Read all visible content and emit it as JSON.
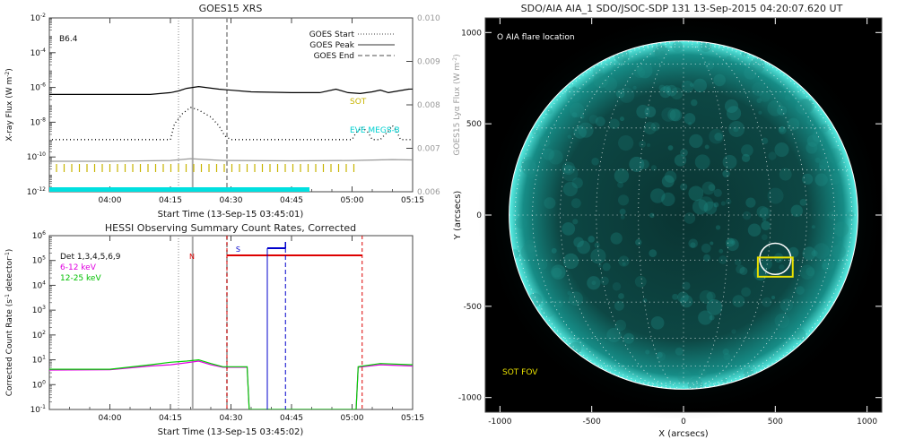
{
  "chart_data": [
    {
      "type": "line",
      "title": "GOES15 XRS",
      "xlabel": "Start Time (13-Sep-15 03:45:01)",
      "ylabel": "X-ray Flux (W m",
      "ylabel_sup": "-2",
      "ylabel_tail": ")",
      "y2label": "GOES15 Lyα Flux (W m",
      "y2label_sup": "-2",
      "y2label_tail": ")",
      "xlim": [
        -15,
        75
      ],
      "x_ticks": [
        {
          "v": 0,
          "label": "04:00"
        },
        {
          "v": 15,
          "label": "04:15"
        },
        {
          "v": 30,
          "label": "04:30"
        },
        {
          "v": 45,
          "label": "04:45"
        },
        {
          "v": 60,
          "label": "05:00"
        },
        {
          "v": 75,
          "label": "05:15"
        }
      ],
      "y_scale": "log",
      "ylim_exp": [
        -12,
        -2
      ],
      "y_ticks": [
        {
          "e": -2,
          "label": "10",
          "sup": "-2"
        },
        {
          "e": -4,
          "label": "10",
          "sup": "-4"
        },
        {
          "e": -6,
          "label": "10",
          "sup": "-6"
        },
        {
          "e": -8,
          "label": "10",
          "sup": "-8"
        },
        {
          "e": -10,
          "label": "10",
          "sup": "-10"
        },
        {
          "e": -12,
          "label": "10",
          "sup": "-12"
        }
      ],
      "y2lim": [
        0.006,
        0.01
      ],
      "y2_ticks": [
        "0.010",
        "0.009",
        "0.008",
        "0.007",
        "0.006"
      ],
      "class_label": "B6.4",
      "legend": [
        {
          "label": "GOES Start",
          "style": "dotted"
        },
        {
          "label": "GOES Peak",
          "style": "solid"
        },
        {
          "label": "GOES End",
          "style": "dashed"
        }
      ],
      "markers": {
        "start": 17,
        "peak": 20.5,
        "end": 29
      },
      "annotations": [
        {
          "text": "SOT",
          "color": "#c8b400"
        },
        {
          "text": "EVE MEGS-B",
          "color": "#00e0e0"
        }
      ],
      "series": [
        {
          "color": "#000000",
          "points": [
            [
              -25,
              -6.4
            ],
            [
              -5,
              -6.4
            ],
            [
              10,
              -6.4
            ],
            [
              15,
              -6.3
            ],
            [
              17,
              -6.2
            ],
            [
              19,
              -6.05
            ],
            [
              22,
              -5.95
            ],
            [
              27,
              -6.1
            ],
            [
              35,
              -6.25
            ],
            [
              45,
              -6.3
            ],
            [
              52,
              -6.3
            ],
            [
              56,
              -6.1
            ],
            [
              59,
              -6.3
            ],
            [
              62,
              -6.35
            ],
            [
              65,
              -6.25
            ],
            [
              67,
              -6.15
            ],
            [
              69,
              -6.3
            ],
            [
              74,
              -6.1
            ],
            [
              83,
              -6.0
            ]
          ]
        },
        {
          "color": "#000000",
          "style": "dotted",
          "points": [
            [
              -25,
              -9.0
            ],
            [
              15,
              -9.0
            ],
            [
              16,
              -8.1
            ],
            [
              18,
              -7.5
            ],
            [
              20,
              -7.15
            ],
            [
              22,
              -7.3
            ],
            [
              25,
              -7.7
            ],
            [
              27,
              -8.2
            ],
            [
              28.5,
              -8.8
            ],
            [
              30,
              -9.0
            ],
            [
              60,
              -9.0
            ],
            [
              61,
              -8.6
            ],
            [
              62.5,
              -8.3
            ],
            [
              64,
              -8.6
            ],
            [
              65,
              -9.0
            ],
            [
              67,
              -9.0
            ],
            [
              69,
              -8.5
            ],
            [
              70,
              -8.2
            ],
            [
              71,
              -8.5
            ],
            [
              72,
              -9.0
            ],
            [
              83,
              -9.0
            ]
          ]
        },
        {
          "color": "#999999",
          "points": [
            [
              -25,
              -10.25
            ],
            [
              0,
              -10.25
            ],
            [
              15,
              -10.2
            ],
            [
              20,
              -10.1
            ],
            [
              28,
              -10.2
            ],
            [
              45,
              -10.22
            ],
            [
              60,
              -10.2
            ],
            [
              70,
              -10.15
            ],
            [
              83,
              -10.2
            ]
          ]
        }
      ]
    },
    {
      "type": "line",
      "title": "HESSI Observing Summary Count Rates, Corrected",
      "xlabel": "Start Time (13-Sep-15 03:45:02)",
      "ylabel": "Corrected Count Rate (s",
      "ylabel_sup": "-1",
      "ylabel_tail": " detector",
      "ylabel_sup2": "-1",
      "ylabel_end": ")",
      "xlim": [
        -15,
        75
      ],
      "x_ticks": [
        {
          "v": 0,
          "label": "04:00"
        },
        {
          "v": 15,
          "label": "04:15"
        },
        {
          "v": 30,
          "label": "04:30"
        },
        {
          "v": 45,
          "label": "04:45"
        },
        {
          "v": 60,
          "label": "05:00"
        },
        {
          "v": 75,
          "label": "05:15"
        }
      ],
      "y_scale": "log",
      "ylim_exp": [
        -1,
        6
      ],
      "y_ticks": [
        {
          "e": 6,
          "label": "10",
          "sup": "6"
        },
        {
          "e": 5,
          "label": "10",
          "sup": "5"
        },
        {
          "e": 4,
          "label": "10",
          "sup": "4"
        },
        {
          "e": 3,
          "label": "10",
          "sup": "3"
        },
        {
          "e": 2,
          "label": "10",
          "sup": "2"
        },
        {
          "e": 1,
          "label": "10",
          "sup": "1"
        },
        {
          "e": 0,
          "label": "10",
          "sup": "0"
        },
        {
          "e": -1,
          "label": "10",
          "sup": "-1"
        }
      ],
      "legend": [
        {
          "label": "Det 1,3,4,5,6,9",
          "color": "#000000"
        },
        {
          "label": "6-12 keV",
          "color": "#e000e0"
        },
        {
          "label": "12-25 keV",
          "color": "#00d000"
        }
      ],
      "markers": {
        "start": 17,
        "peak": 20.5,
        "end": 29
      },
      "night": {
        "label": "N",
        "start": 29,
        "end": 62.5,
        "color": "#dd0000"
      },
      "saa": {
        "label": "S",
        "start": 39,
        "end": 43.5,
        "color": "#0000cc"
      },
      "series": [
        {
          "name": "6-12 keV",
          "color": "#e000e0",
          "points": [
            [
              -25,
              0.58
            ],
            [
              0,
              0.6
            ],
            [
              10,
              0.75
            ],
            [
              15,
              0.8
            ],
            [
              19,
              0.88
            ],
            [
              22,
              0.95
            ],
            [
              25,
              0.8
            ],
            [
              28,
              0.7
            ],
            [
              34,
              0.7
            ],
            [
              34.5,
              -1
            ],
            [
              61,
              -1
            ],
            [
              61.5,
              0.7
            ],
            [
              67,
              0.8
            ],
            [
              75,
              0.75
            ],
            [
              83,
              0.7
            ]
          ]
        },
        {
          "name": "12-25 keV",
          "color": "#00d000",
          "points": [
            [
              -25,
              0.62
            ],
            [
              0,
              0.62
            ],
            [
              10,
              0.8
            ],
            [
              15,
              0.9
            ],
            [
              19,
              0.95
            ],
            [
              22,
              1.0
            ],
            [
              25,
              0.85
            ],
            [
              28,
              0.72
            ],
            [
              34,
              0.72
            ],
            [
              34.5,
              -1
            ],
            [
              61,
              -1
            ],
            [
              61.5,
              0.72
            ],
            [
              67,
              0.85
            ],
            [
              75,
              0.8
            ],
            [
              83,
              0.72
            ]
          ]
        }
      ]
    },
    {
      "type": "image",
      "title": "SDO/AIA AIA_1 SDO/JSOC-SDP 131 13-Sep-2015 04:20:07.620 UT",
      "xlabel": "X (arcsecs)",
      "ylabel": "Y (arcsecs)",
      "xlim": [
        -1080,
        1080
      ],
      "ylim": [
        -1080,
        1080
      ],
      "x_ticks": [
        -1000,
        -500,
        0,
        500,
        1000
      ],
      "y_ticks": [
        1000,
        500,
        0,
        -500,
        -1000
      ],
      "solar_radius": 950,
      "flare_location": {
        "x": 500,
        "y": -240,
        "r": 85
      },
      "sot_fov": {
        "x": 500,
        "y": -285,
        "w": 190,
        "h": 105
      },
      "labels": {
        "flare": "O AIA flare location",
        "sot": "SOT FOV"
      },
      "colors": {
        "sun": "#00d2c8",
        "sot": "#e8e000"
      }
    }
  ]
}
